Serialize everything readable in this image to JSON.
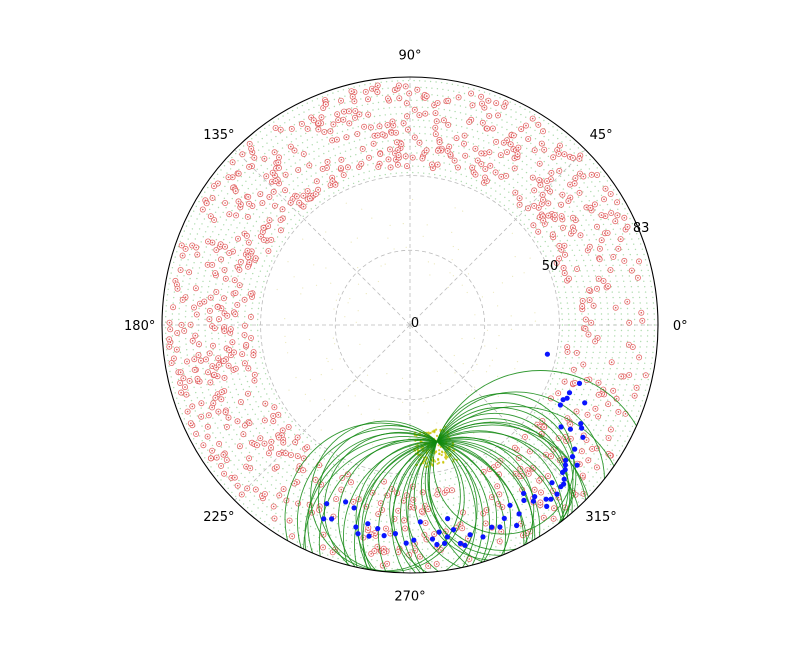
{
  "chart_data": {
    "type": "scatter",
    "projection": "polar",
    "r_range": [
      0,
      83
    ],
    "r_ticks": [
      "0",
      "50",
      "83"
    ],
    "r_tick_values": [
      0,
      50,
      83
    ],
    "theta_ticks": [
      "0°",
      "45°",
      "90°",
      "135°",
      "180°",
      "225°",
      "270°",
      "315°"
    ],
    "theta_tick_values": [
      0,
      45,
      90,
      135,
      180,
      225,
      270,
      315
    ],
    "grid": true,
    "grid_style": "dashed",
    "colors": {
      "candidates": "#e05555",
      "search_grid": "#6cbf6c",
      "inner_grid": "#d9d27a",
      "cluster": "#c8c400",
      "selected": "#0a14ff",
      "arcs": "#118811",
      "axes": "#000000",
      "gridlines": "#bbbbbb"
    },
    "scatter_groups": [
      {
        "id": "candidates",
        "marker": "open-circle-dot",
        "count": 900,
        "r_range": [
          53,
          81
        ]
      },
      {
        "id": "search_grid",
        "marker": "dot",
        "r_range": [
          50,
          83
        ]
      },
      {
        "id": "inner_grid",
        "marker": "dot",
        "r_range": [
          15,
          50
        ]
      },
      {
        "id": "cluster",
        "marker": "dot",
        "center_theta": 278,
        "center_r": 44
      },
      {
        "id": "selected",
        "marker": "filled-circle",
        "count": 63
      },
      {
        "id": "arcs",
        "marker": "circle-arc",
        "count": 30,
        "anchor": {
          "theta": 283,
          "r": 40
        }
      }
    ],
    "selected_points": [
      [
        348,
        47
      ],
      [
        341,
        60
      ],
      [
        337,
        58
      ],
      [
        335,
        58
      ],
      [
        334,
        57
      ],
      [
        332,
        57
      ],
      [
        330,
        66
      ],
      [
        329,
        67
      ],
      [
        327,
        69
      ],
      [
        327,
        64
      ],
      [
        323,
        69
      ],
      [
        321,
        70
      ],
      [
        320,
        73
      ],
      [
        319,
        69
      ],
      [
        318,
        70
      ],
      [
        317,
        71
      ],
      [
        316,
        71
      ],
      [
        315,
        73
      ],
      [
        314,
        74
      ],
      [
        313,
        74
      ],
      [
        312,
        71
      ],
      [
        311,
        75
      ],
      [
        309,
        75
      ],
      [
        308,
        74
      ],
      [
        307,
        76
      ],
      [
        306,
        71
      ],
      [
        305,
        72
      ],
      [
        304,
        68
      ],
      [
        303,
        70
      ],
      [
        300,
        73
      ],
      [
        299,
        69
      ],
      [
        298,
        76
      ],
      [
        296,
        72
      ],
      [
        294,
        74
      ],
      [
        292,
        73
      ],
      [
        289,
        75
      ],
      [
        286,
        73
      ],
      [
        284,
        76
      ],
      [
        283,
        75
      ],
      [
        282,
        70
      ],
      [
        281,
        66
      ],
      [
        280,
        72
      ],
      [
        279,
        74
      ],
      [
        278,
        70
      ],
      [
        277,
        74
      ],
      [
        276,
        72
      ],
      [
        273,
        66
      ],
      [
        271,
        72
      ],
      [
        269,
        73
      ],
      [
        266,
        70
      ],
      [
        263,
        71
      ],
      [
        261,
        69
      ],
      [
        259,
        72
      ],
      [
        258,
        68
      ],
      [
        256,
        72
      ],
      [
        255,
        70
      ],
      [
        253,
        64
      ],
      [
        250,
        63
      ],
      [
        248,
        70
      ],
      [
        246,
        71
      ],
      [
        245,
        66
      ],
      [
        326,
        61
      ],
      [
        336,
        64
      ]
    ]
  }
}
